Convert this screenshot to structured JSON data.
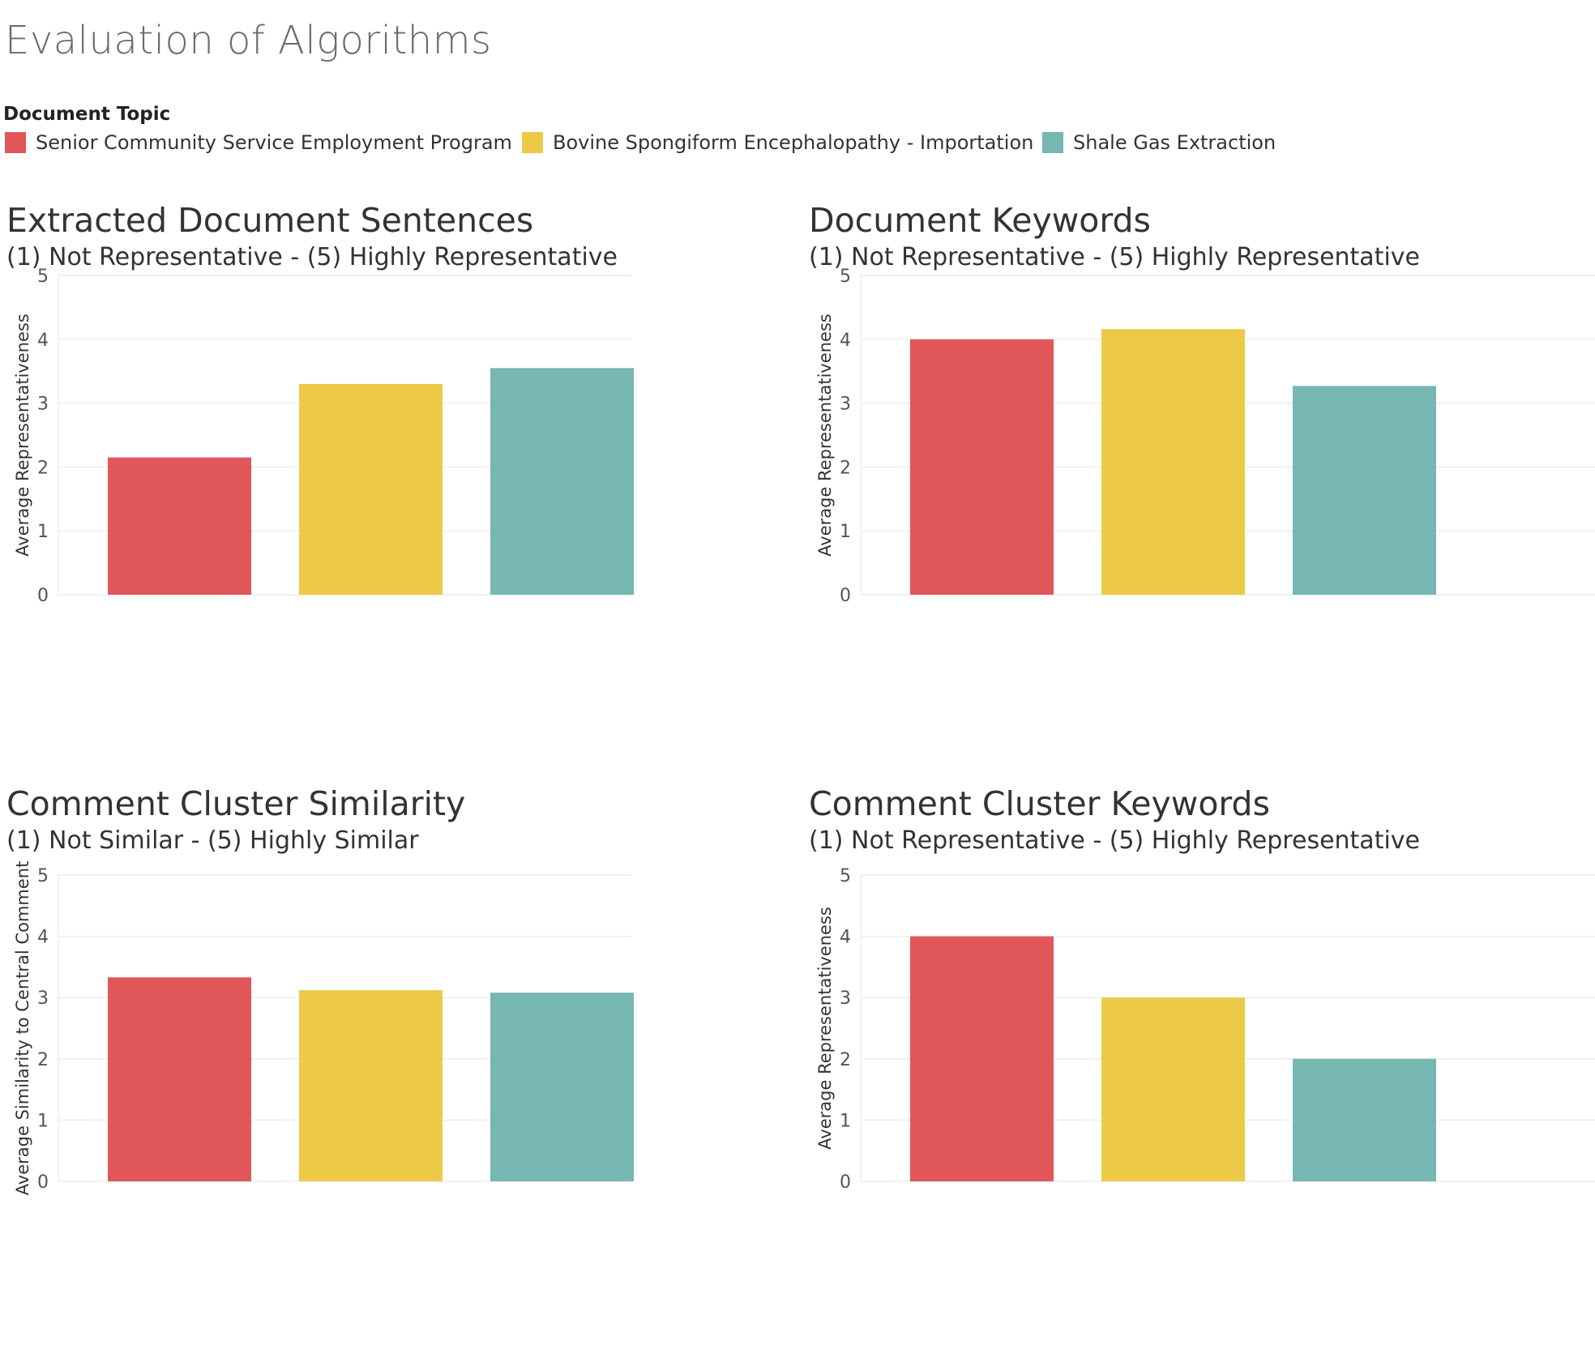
{
  "page": {
    "title": "Evaluation of Algorithms"
  },
  "legend": {
    "title": "Document Topic",
    "items": [
      {
        "label": "Senior Community Service Employment Program",
        "color": "#e15759"
      },
      {
        "label": "Bovine Spongiform Encephalopathy - Importation",
        "color": "#edc948"
      },
      {
        "label": "Shale Gas Extraction",
        "color": "#76b7b2"
      }
    ]
  },
  "chart_data": [
    {
      "type": "bar",
      "title": "Extracted Document Sentences",
      "subtitle": "(1) Not Representative - (5) Highly Representative",
      "ylabel": "Average Representativeness",
      "xlabel": "",
      "ylim": [
        0,
        5
      ],
      "yticks": [
        "0",
        "1",
        "2",
        "3",
        "4",
        "5"
      ],
      "grid": true,
      "categories": [
        "Senior Community Service Employment Program",
        "Bovine Spongiform Encephalopathy - Importation",
        "Shale Gas Extraction"
      ],
      "values": [
        2.15,
        3.3,
        3.55
      ],
      "colors": [
        "#e15759",
        "#edc948",
        "#76b7b2"
      ]
    },
    {
      "type": "bar",
      "title": "Document Keywords",
      "subtitle": "(1) Not Representative - (5) Highly Representative",
      "ylabel": "Average Representativeness",
      "xlabel": "",
      "ylim": [
        0,
        5
      ],
      "yticks": [
        "0",
        "1",
        "2",
        "3",
        "4",
        "5"
      ],
      "grid": true,
      "categories": [
        "Senior Community Service Employment Program",
        "Bovine Spongiform Encephalopathy - Importation",
        "Shale Gas Extraction"
      ],
      "values": [
        4.0,
        4.16,
        3.27
      ],
      "colors": [
        "#e15759",
        "#edc948",
        "#76b7b2"
      ]
    },
    {
      "type": "bar",
      "title": "Comment Cluster Similarity",
      "subtitle": "(1) Not Similar - (5) Highly Similar",
      "ylabel": "Average Similarity to Central Comment",
      "xlabel": "",
      "ylim": [
        0,
        5
      ],
      "yticks": [
        "0",
        "1",
        "2",
        "3",
        "4",
        "5"
      ],
      "grid": true,
      "categories": [
        "Senior Community Service Employment Program",
        "Bovine Spongiform Encephalopathy - Importation",
        "Shale Gas Extraction"
      ],
      "values": [
        3.33,
        3.12,
        3.08
      ],
      "colors": [
        "#e15759",
        "#edc948",
        "#76b7b2"
      ]
    },
    {
      "type": "bar",
      "title": "Comment Cluster Keywords",
      "subtitle": "(1) Not Representative - (5) Highly Representative",
      "ylabel": "Average Representativeness",
      "xlabel": "",
      "ylim": [
        0,
        5
      ],
      "yticks": [
        "0",
        "1",
        "2",
        "3",
        "4",
        "5"
      ],
      "grid": true,
      "categories": [
        "Senior Community Service Employment Program",
        "Bovine Spongiform Encephalopathy - Importation",
        "Shale Gas Extraction"
      ],
      "values": [
        4.0,
        3.0,
        2.0
      ],
      "colors": [
        "#e15759",
        "#edc948",
        "#76b7b2"
      ]
    }
  ]
}
